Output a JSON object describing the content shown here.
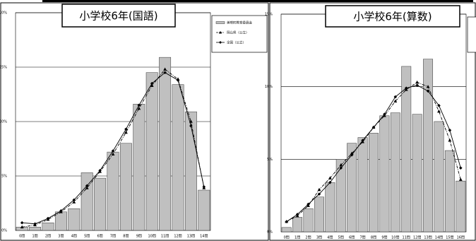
{
  "chart_data": [
    {
      "type": "bar",
      "title": "小学校6年(国語)",
      "categories": [
        "0問",
        "1問",
        "2問",
        "3問",
        "4問",
        "5問",
        "6問",
        "7問",
        "8問",
        "9問",
        "10問",
        "11問",
        "12問",
        "13問",
        "14問"
      ],
      "series": [
        {
          "name": "美咲町教育委員会",
          "style": "bar",
          "color": "#c0c0c0",
          "values": [
            0.3,
            0.3,
            0.7,
            1.7,
            2.0,
            5.3,
            4.8,
            7.2,
            8.0,
            11.6,
            14.5,
            15.9,
            13.4,
            10.9,
            3.7
          ]
        },
        {
          "name": "岡山県（公立）",
          "style": "line",
          "marker": "triangle",
          "dash": true,
          "color": "#000000",
          "values": [
            0.3,
            0.5,
            1.0,
            1.7,
            2.6,
            3.9,
            5.4,
            7.0,
            9.0,
            11.2,
            13.3,
            14.8,
            13.9,
            10.0,
            3.9
          ]
        },
        {
          "name": "全国（公立）",
          "style": "line",
          "marker": "diamond",
          "dash": false,
          "color": "#000000",
          "values": [
            0.7,
            0.6,
            1.1,
            1.8,
            2.8,
            4.1,
            5.5,
            7.3,
            9.3,
            11.5,
            13.5,
            14.5,
            13.8,
            9.6,
            4.0
          ]
        }
      ],
      "ylim": [
        0,
        20
      ],
      "yticks": [
        {
          "value": 0,
          "label": "0%"
        },
        {
          "value": 5,
          "label": "5%"
        },
        {
          "value": 10,
          "label": "10%"
        },
        {
          "value": 15,
          "label": "15%"
        },
        {
          "value": 20,
          "label": "20%"
        }
      ],
      "grid": true,
      "legend": "upper right"
    },
    {
      "type": "bar",
      "title": "小学校6年(算数)",
      "categories": [
        "0問",
        "1問",
        "2問",
        "3問",
        "4問",
        "5問",
        "6問",
        "7問",
        "8問",
        "9問",
        "10問",
        "11問",
        "12問",
        "13問",
        "14問",
        "15問",
        "16問"
      ],
      "series": [
        {
          "style": "bar",
          "color": "#c0c0c0",
          "values": [
            0.3,
            1.0,
            1.6,
            2.4,
            3.4,
            5.0,
            6.1,
            6.5,
            6.8,
            8.0,
            8.2,
            11.4,
            8.1,
            11.9,
            7.6,
            5.6,
            3.5
          ]
        },
        {
          "style": "line",
          "marker": "triangle",
          "dash": true,
          "color": "#000000",
          "values": [
            0.7,
            1.1,
            1.8,
            2.9,
            3.7,
            4.6,
            5.4,
            6.2,
            7.2,
            8.0,
            9.0,
            9.8,
            10.3,
            10.0,
            8.3,
            6.3,
            3.6
          ]
        },
        {
          "style": "line",
          "marker": "diamond",
          "dash": false,
          "color": "#000000",
          "values": [
            0.7,
            1.2,
            1.9,
            2.6,
            3.4,
            4.4,
            5.3,
            6.3,
            7.2,
            8.1,
            9.3,
            9.9,
            10.1,
            9.7,
            8.7,
            7.0,
            4.4
          ]
        }
      ],
      "ylim": [
        0,
        15
      ],
      "yticks": [
        {
          "value": 0,
          "label": "0%"
        },
        {
          "value": 5,
          "label": "5%"
        },
        {
          "value": 10,
          "label": "10%"
        },
        {
          "value": 15,
          "label": "15%"
        }
      ],
      "grid": true
    }
  ]
}
